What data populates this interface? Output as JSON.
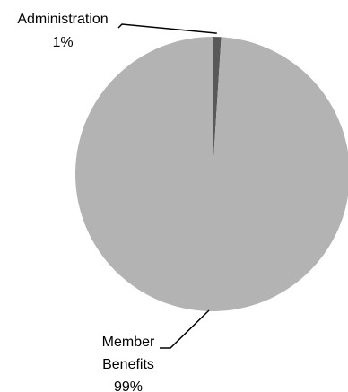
{
  "chart_data": {
    "type": "pie",
    "title": "",
    "categories": [
      "Administration",
      "Member Benefits"
    ],
    "values": [
      1,
      99
    ],
    "value_labels": [
      "1%",
      "99%"
    ],
    "label_lines": [
      [
        "Administration"
      ],
      [
        "Member",
        "Benefits"
      ]
    ],
    "colors": [
      "#595959",
      "#b3b3b3"
    ],
    "legend": "none",
    "grid": false
  }
}
